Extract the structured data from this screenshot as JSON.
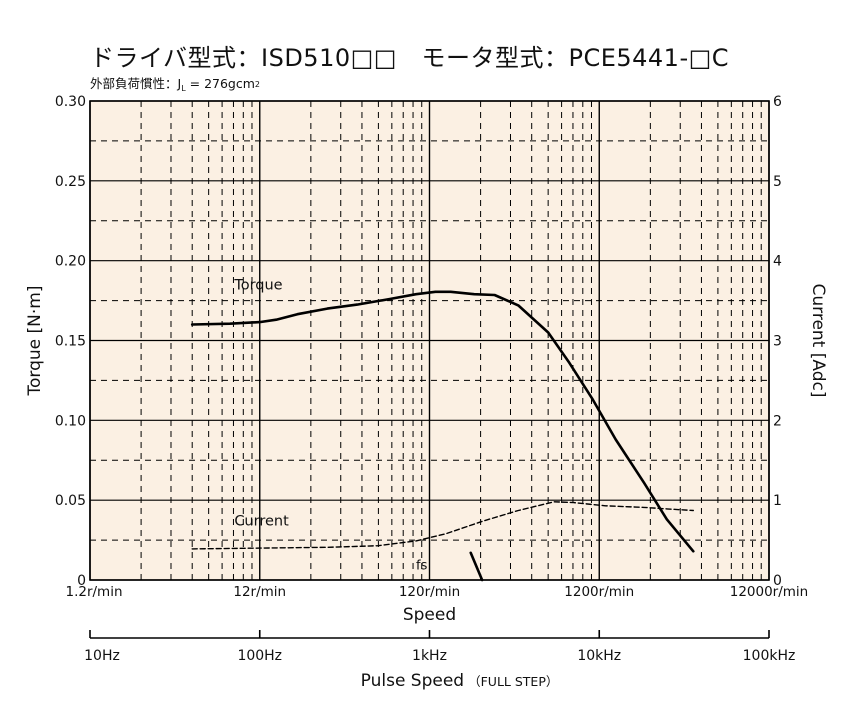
{
  "title": "ドライバ型式：ISD510□□　モータ型式：PCE5441-□C",
  "subtitle": {
    "prefix": "外部負荷慣性：J",
    "subscript": "L",
    "value": " = 276gcm",
    "superscript": "2"
  },
  "chart_data": {
    "type": "line",
    "xscale": "log",
    "xlabel": "Speed",
    "x2label": "Pulse Speed",
    "x2label_note": "（FULL STEP）",
    "ylabel": "Torque [N·m]",
    "y2label": "Current [Adc]",
    "xlim": [
      1.2,
      12000
    ],
    "ylim": [
      0,
      0.3
    ],
    "y2lim": [
      0,
      6
    ],
    "x_ticks": [
      {
        "v": 1.2,
        "label": "1.2r/min"
      },
      {
        "v": 12,
        "label": "12r/min"
      },
      {
        "v": 120,
        "label": "120r/min"
      },
      {
        "v": 1200,
        "label": "1200r/min"
      },
      {
        "v": 12000,
        "label": "12000r/min"
      }
    ],
    "x2_ticks": [
      {
        "v": 1.2,
        "label": "10Hz"
      },
      {
        "v": 12,
        "label": "100Hz"
      },
      {
        "v": 120,
        "label": "1kHz"
      },
      {
        "v": 1200,
        "label": "10kHz"
      },
      {
        "v": 12000,
        "label": "100kHz"
      }
    ],
    "y_ticks": [
      {
        "v": 0,
        "label": "0"
      },
      {
        "v": 0.05,
        "label": "0.05"
      },
      {
        "v": 0.1,
        "label": "0.10"
      },
      {
        "v": 0.15,
        "label": "0.15"
      },
      {
        "v": 0.2,
        "label": "0.20"
      },
      {
        "v": 0.25,
        "label": "0.25"
      },
      {
        "v": 0.3,
        "label": "0.30"
      }
    ],
    "y2_ticks": [
      {
        "v": 0,
        "label": "0"
      },
      {
        "v": 1,
        "label": "1"
      },
      {
        "v": 2,
        "label": "2"
      },
      {
        "v": 3,
        "label": "3"
      },
      {
        "v": 4,
        "label": "4"
      },
      {
        "v": 5,
        "label": "5"
      },
      {
        "v": 6,
        "label": "6"
      }
    ],
    "grid": true,
    "series": [
      {
        "name": "Torque",
        "axis": "left",
        "style": "solid",
        "color": "#000000",
        "points": [
          [
            4.8,
            0.16
          ],
          [
            8,
            0.1605
          ],
          [
            12,
            0.1615
          ],
          [
            15,
            0.163
          ],
          [
            20,
            0.1665
          ],
          [
            30,
            0.17
          ],
          [
            45,
            0.1725
          ],
          [
            70,
            0.176
          ],
          [
            100,
            0.179
          ],
          [
            130,
            0.1805
          ],
          [
            160,
            0.1805
          ],
          [
            220,
            0.179
          ],
          [
            290,
            0.1785
          ],
          [
            400,
            0.172
          ],
          [
            600,
            0.155
          ],
          [
            800,
            0.136
          ],
          [
            1100,
            0.113
          ],
          [
            1500,
            0.088
          ],
          [
            2200,
            0.061
          ],
          [
            3000,
            0.038
          ],
          [
            4300,
            0.018
          ]
        ]
      },
      {
        "name": "Current",
        "axis": "right",
        "style": "dashed",
        "color": "#000000",
        "points": [
          [
            4.8,
            0.39
          ],
          [
            12,
            0.4
          ],
          [
            30,
            0.41
          ],
          [
            60,
            0.43
          ],
          [
            100,
            0.49
          ],
          [
            150,
            0.58
          ],
          [
            250,
            0.74
          ],
          [
            400,
            0.87
          ],
          [
            650,
            0.98
          ],
          [
            850,
            0.97
          ],
          [
            1300,
            0.93
          ],
          [
            2200,
            0.91
          ],
          [
            3000,
            0.89
          ],
          [
            4300,
            0.87
          ]
        ]
      }
    ],
    "annotations": [
      {
        "text": "Torque",
        "x": 8.5,
        "y": 0.182
      },
      {
        "text": "Current",
        "x": 8.5,
        "y": 0.034
      },
      {
        "text": "fs",
        "x": 100,
        "y": 0.0065
      }
    ],
    "fs_line": [
      [
        210,
        0.017
      ],
      [
        245,
        0.0
      ]
    ],
    "colors": {
      "plot_background": "#fbf0e3",
      "line": "#000000",
      "grid": "#000000"
    }
  }
}
